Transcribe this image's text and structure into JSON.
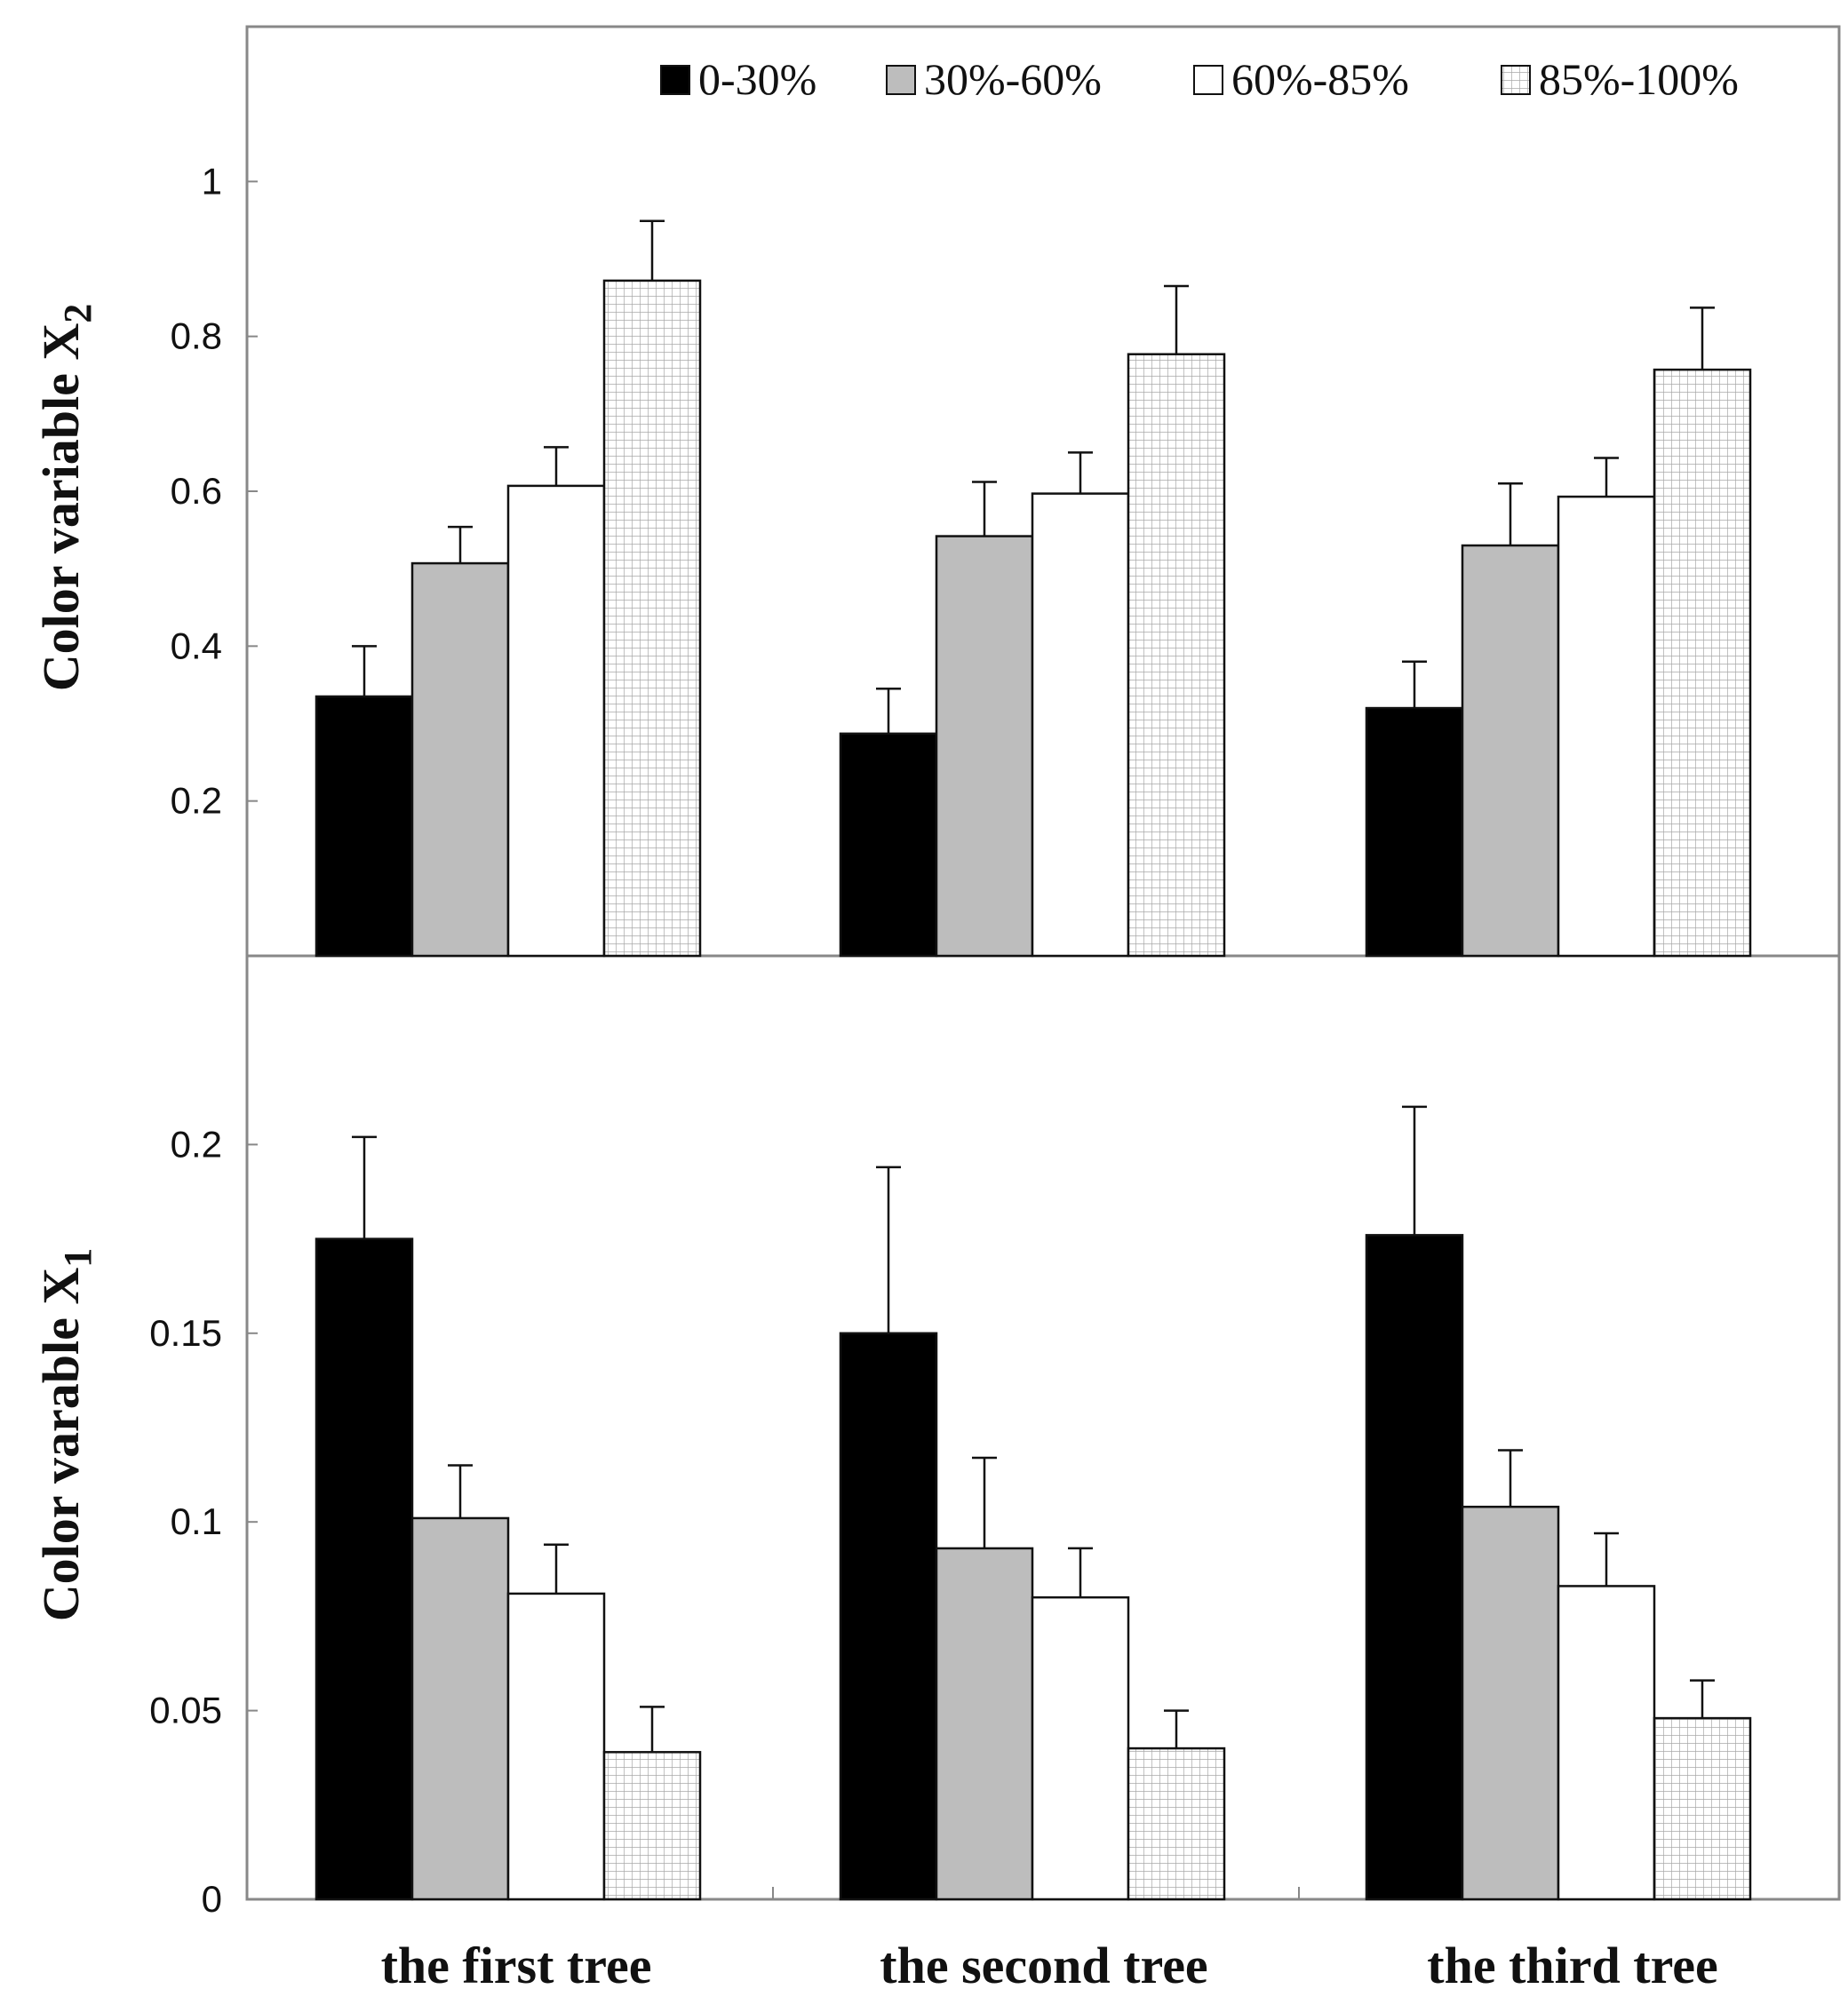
{
  "chart_data": [
    {
      "type": "bar",
      "panel": "top",
      "title": "",
      "xlabel": "",
      "ylabel": "Color variable X",
      "ylabel_subscript": "2",
      "ylim": [
        0,
        1.2
      ],
      "yticks": [
        "0.2",
        "0.4",
        "0.6",
        "0.8",
        "1"
      ],
      "categories": [
        "the first tree",
        "the second tree",
        "the third tree"
      ],
      "series": [
        {
          "name": "0-30%",
          "values": [
            0.335,
            0.287,
            0.32
          ],
          "errors": [
            0.065,
            0.058,
            0.06
          ]
        },
        {
          "name": "30%-60%",
          "values": [
            0.507,
            0.542,
            0.53
          ],
          "errors": [
            0.047,
            0.07,
            0.08
          ]
        },
        {
          "name": "60%-85%",
          "values": [
            0.607,
            0.597,
            0.593
          ],
          "errors": [
            0.05,
            0.053,
            0.05
          ]
        },
        {
          "name": "85%-100%",
          "values": [
            0.872,
            0.777,
            0.757
          ],
          "errors": [
            0.077,
            0.088,
            0.08
          ]
        }
      ],
      "legend_location": "top-right",
      "grid": false
    },
    {
      "type": "bar",
      "panel": "bottom",
      "title": "",
      "xlabel": "",
      "ylabel": "Color varable X",
      "ylabel_subscript": "1",
      "ylim": [
        0,
        0.25
      ],
      "yticks": [
        "0",
        "0.05",
        "0.1",
        "0.15",
        "0.2"
      ],
      "categories": [
        "the first tree",
        "the second tree",
        "the third tree"
      ],
      "series": [
        {
          "name": "0-30%",
          "values": [
            0.175,
            0.15,
            0.176
          ],
          "errors": [
            0.027,
            0.044,
            0.034
          ]
        },
        {
          "name": "30%-60%",
          "values": [
            0.101,
            0.093,
            0.104
          ],
          "errors": [
            0.014,
            0.024,
            0.015
          ]
        },
        {
          "name": "60%-85%",
          "values": [
            0.081,
            0.08,
            0.083
          ],
          "errors": [
            0.013,
            0.013,
            0.014
          ]
        },
        {
          "name": "85%-100%",
          "values": [
            0.039,
            0.04,
            0.048
          ],
          "errors": [
            0.012,
            0.01,
            0.01
          ]
        }
      ],
      "grid": false
    }
  ],
  "legend": [
    {
      "label": "0-30%",
      "fill": "#000000"
    },
    {
      "label": "30%-60%",
      "fill": "#bdbdbd"
    },
    {
      "label": "60%-85%",
      "fill": "#ffffff"
    },
    {
      "label": "85%-100%",
      "fill": "pattern"
    }
  ],
  "colors": {
    "series_0": "#000000",
    "series_1": "#bdbdbd",
    "series_2": "#ffffff",
    "grid_pattern_line": "#a8a8a8",
    "axis": "#888888",
    "outline": "#111111"
  }
}
